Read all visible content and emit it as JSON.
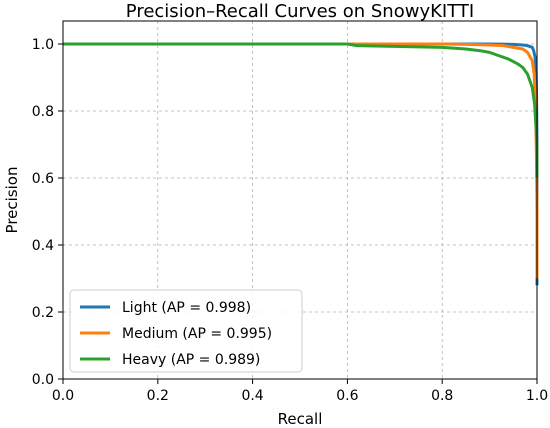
{
  "chart_data": {
    "type": "line",
    "title": "Precision–Recall Curves on SnowyKITTI",
    "xlabel": "Recall",
    "ylabel": "Precision",
    "xlim": [
      0.0,
      1.0
    ],
    "ylim": [
      0.0,
      1.0
    ],
    "xticks": [
      0.0,
      0.2,
      0.4,
      0.6,
      0.8,
      1.0
    ],
    "xtick_labels": [
      "0.0",
      "0.2",
      "0.4",
      "0.6",
      "0.8",
      "1.0"
    ],
    "yticks": [
      0.0,
      0.2,
      0.4,
      0.6,
      0.8,
      1.0
    ],
    "ytick_labels": [
      "0.0",
      "0.2",
      "0.4",
      "0.6",
      "0.8",
      "1.0"
    ],
    "grid": true,
    "legend_position": "lower-left",
    "series": [
      {
        "name": "Light (AP = 0.998)",
        "color": "#1f77b4",
        "x": [
          0.0,
          0.9,
          0.95,
          0.97,
          0.98,
          0.99,
          0.993,
          0.996,
          0.998,
          0.999,
          1.0,
          1.0,
          1.0
        ],
        "y": [
          1.0,
          1.0,
          0.999,
          0.997,
          0.995,
          0.99,
          0.98,
          0.96,
          0.93,
          0.85,
          0.7,
          0.5,
          0.28
        ]
      },
      {
        "name": "Medium (AP = 0.995)",
        "color": "#ff7f0e",
        "x": [
          0.0,
          0.8,
          0.85,
          0.9,
          0.93,
          0.95,
          0.97,
          0.98,
          0.99,
          0.994,
          0.997,
          0.999,
          1.0,
          1.0,
          1.0
        ],
        "y": [
          1.0,
          1.0,
          0.999,
          0.997,
          0.995,
          0.99,
          0.985,
          0.975,
          0.95,
          0.91,
          0.82,
          0.65,
          0.5,
          0.4,
          0.3
        ]
      },
      {
        "name": "Heavy (AP = 0.989)",
        "color": "#2ca02c",
        "x": [
          0.0,
          0.6,
          0.62,
          0.7,
          0.8,
          0.85,
          0.88,
          0.9,
          0.92,
          0.94,
          0.96,
          0.97,
          0.98,
          0.99,
          0.995,
          0.998,
          1.0,
          1.0
        ],
        "y": [
          1.0,
          1.0,
          0.995,
          0.993,
          0.99,
          0.985,
          0.98,
          0.975,
          0.965,
          0.955,
          0.94,
          0.93,
          0.91,
          0.87,
          0.82,
          0.75,
          0.7,
          0.6
        ]
      }
    ]
  }
}
